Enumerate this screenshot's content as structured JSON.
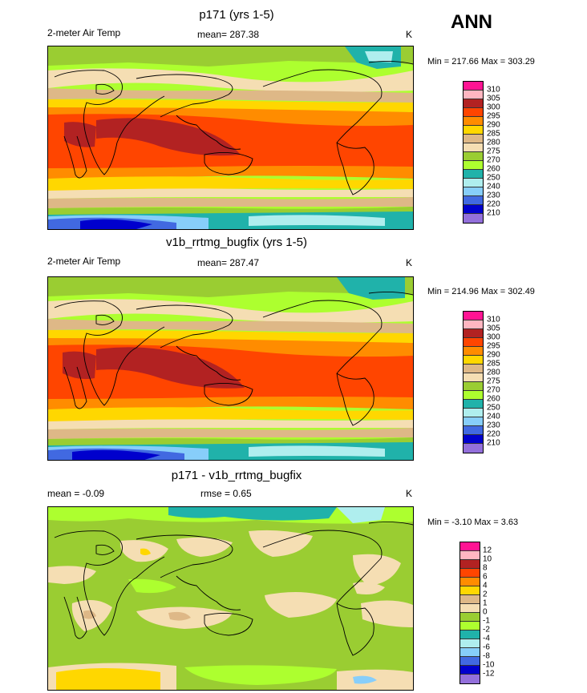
{
  "season": "ANN",
  "panels": [
    {
      "title": "p171 (yrs 1-5)",
      "variable": "2-meter Air Temp",
      "stat_text": "mean= 287.38",
      "units": "K",
      "minmax": "Min = 217.66 Max = 303.29"
    },
    {
      "title": "v1b_rrtmg_bugfix (yrs 1-5)",
      "variable": "2-meter Air Temp",
      "stat_text": "mean= 287.47",
      "units": "K",
      "minmax": "Min = 214.96 Max = 302.49"
    },
    {
      "title": "p171 - v1b_rrtmg_bugfix",
      "variable": "mean =  -0.09",
      "stat_text": "rmse =   0.65",
      "units": "K",
      "minmax": "Min =  -3.10 Max =   3.63"
    }
  ],
  "colorbars": {
    "absolute": {
      "levels": [
        "310",
        "305",
        "300",
        "295",
        "290",
        "285",
        "280",
        "275",
        "270",
        "260",
        "250",
        "240",
        "230",
        "220",
        "210"
      ],
      "colors": [
        "#ff1493",
        "#ffb6c1",
        "#b22222",
        "#ff4500",
        "#ff8c00",
        "#ffd700",
        "#deb887",
        "#f5deb3",
        "#9acd32",
        "#adff2f",
        "#20b2aa",
        "#afeeee",
        "#87cefa",
        "#4169e1",
        "#0000cd",
        "#9370db"
      ]
    },
    "difference": {
      "levels": [
        "12",
        "10",
        "8",
        "6",
        "4",
        "2",
        "1",
        "0",
        "-1",
        "-2",
        "-4",
        "-6",
        "-8",
        "-10",
        "-12"
      ],
      "colors": [
        "#ff1493",
        "#ffb6c1",
        "#b22222",
        "#ff4500",
        "#ff8c00",
        "#ffd700",
        "#deb887",
        "#f5deb3",
        "#9acd32",
        "#adff2f",
        "#20b2aa",
        "#afeeee",
        "#87cefa",
        "#4169e1",
        "#0000cd",
        "#9370db"
      ]
    }
  }
}
